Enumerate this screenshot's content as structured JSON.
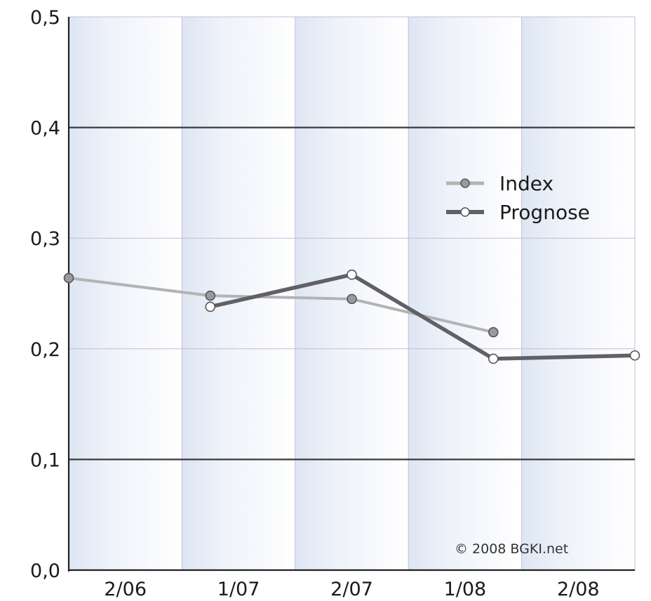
{
  "chart_data": {
    "type": "line",
    "categories": [
      "2/06",
      "1/07",
      "2/07",
      "1/08",
      "2/08"
    ],
    "ylim": [
      0,
      0.5
    ],
    "yticks": [
      "0,0",
      "0,1",
      "0,2",
      "0,3",
      "0,4",
      "0,5"
    ],
    "ytick_values": [
      0,
      0.1,
      0.2,
      0.3,
      0.4,
      0.5
    ],
    "series": [
      {
        "name": "Index",
        "color": "#b3b3b3",
        "marker_fill": "#9a9a9a",
        "points": [
          {
            "x": 0.0,
            "y": 0.264
          },
          {
            "x": 1.25,
            "y": 0.248
          },
          {
            "x": 2.5,
            "y": 0.245
          },
          {
            "x": 3.75,
            "y": 0.215
          }
        ]
      },
      {
        "name": "Prognose",
        "color": "#606066",
        "marker_fill": "#ffffff",
        "points": [
          {
            "x": 1.25,
            "y": 0.238
          },
          {
            "x": 2.5,
            "y": 0.267
          },
          {
            "x": 3.75,
            "y": 0.191
          },
          {
            "x": 5.0,
            "y": 0.194
          }
        ]
      }
    ],
    "grid": true,
    "legend_position": "top-right",
    "annotation": "© 2008 BGKI.net"
  }
}
